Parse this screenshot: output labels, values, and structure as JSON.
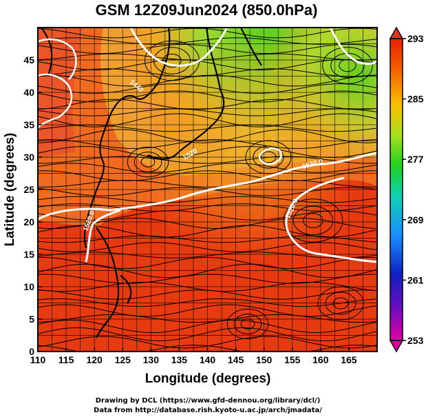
{
  "title": "GSM 12Z09Jun2024 (850.0hPa)",
  "xlabel": "Longitude (degrees)",
  "ylabel": "Latitude  (degrees)",
  "credits": [
    "Drawing by DCL (https://www.gfd-dennou.org/library/dcl/)",
    "Data from http://database.rish.kyoto-u.ac.jp/arch/jmadata/"
  ],
  "chart_data": {
    "type": "heatmap",
    "variable": "850hPa temperature with streamlines and contours",
    "x_range": [
      110,
      170
    ],
    "y_range": [
      0,
      50
    ],
    "x_ticks": [
      110,
      115,
      120,
      125,
      130,
      135,
      140,
      145,
      150,
      155,
      160,
      165
    ],
    "y_ticks": [
      0,
      5,
      10,
      15,
      20,
      25,
      30,
      35,
      40,
      45
    ],
    "colorbar": {
      "min": 253,
      "max": 293,
      "ticks": [
        293,
        285,
        277,
        269,
        261,
        253
      ],
      "colors": [
        "#e0008a",
        "#2020c0",
        "#1a8cff",
        "#10d0a0",
        "#30d020",
        "#a0e020",
        "#f0c000",
        "#f07000",
        "#e82000"
      ]
    },
    "contour_labels": [
      "1520.0",
      "1520.0",
      "1520.0",
      "1440",
      "1520"
    ],
    "grid": true
  }
}
